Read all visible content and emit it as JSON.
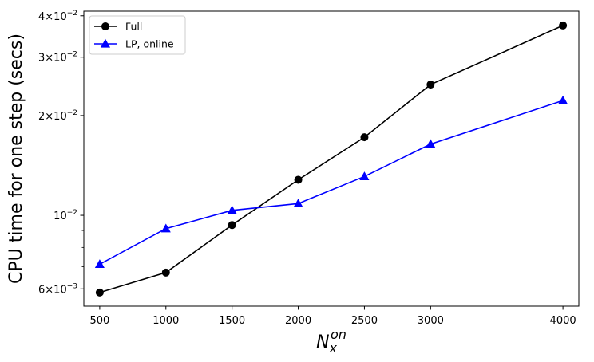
{
  "chart_data": {
    "type": "line",
    "x": [
      500,
      1000,
      1500,
      2000,
      2500,
      3000,
      4000
    ],
    "series": [
      {
        "name": "Full",
        "color": "#000000",
        "marker": "circle",
        "values": [
          0.00585,
          0.00672,
          0.00935,
          0.0128,
          0.0172,
          0.0248,
          0.0374
        ]
      },
      {
        "name": "LP, online",
        "color": "#0000ff",
        "marker": "triangle",
        "values": [
          0.00712,
          0.00912,
          0.01035,
          0.01085,
          0.0131,
          0.0164,
          0.0222
        ]
      }
    ],
    "xlabel": {
      "base": "N",
      "sub": "x",
      "sup": "on"
    },
    "ylabel": "CPU time for one step (secs)",
    "xlim": [
      380,
      4120
    ],
    "ylim": [
      0.00532,
      0.0413
    ],
    "yscale": "log",
    "xticks": [
      500,
      1000,
      1500,
      2000,
      2500,
      3000,
      4000
    ],
    "yticks": [
      {
        "value": 0.006,
        "mantissa": "6",
        "times": "×",
        "base": "10",
        "exp": "−3"
      },
      {
        "value": 0.01,
        "mantissa": "",
        "times": "",
        "base": "10",
        "exp": "−2"
      },
      {
        "value": 0.02,
        "mantissa": "2",
        "times": "×",
        "base": "10",
        "exp": "−2"
      },
      {
        "value": 0.03,
        "mantissa": "3",
        "times": "×",
        "base": "10",
        "exp": "−2"
      },
      {
        "value": 0.04,
        "mantissa": "4",
        "times": "×",
        "base": "10",
        "exp": "−2"
      }
    ],
    "minor_yticks": [
      0.007,
      0.008,
      0.009
    ],
    "legend_position": "top-left",
    "grid": false
  }
}
